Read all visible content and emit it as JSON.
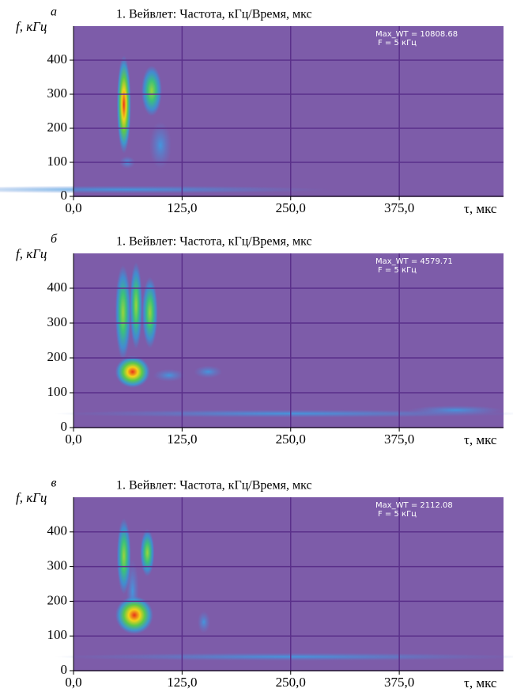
{
  "chart_data": [
    {
      "type": "heatmap",
      "panel_label": "а",
      "title": "1. Вейвлет: Частота, кГц/Время, мкс",
      "ylabel": "f, кГц",
      "xlabel": "τ, мкс",
      "annotations": [
        "Max_WT = 10808.68",
        "F = 5 кГц"
      ],
      "xlim": [
        0,
        495
      ],
      "ylim": [
        0,
        500
      ],
      "xticks": [
        {
          "value": 0,
          "label": "0,0"
        },
        {
          "value": 125,
          "label": "125,0"
        },
        {
          "value": 250,
          "label": "250,0"
        },
        {
          "value": 375,
          "label": "375,0"
        }
      ],
      "yticks": [
        0,
        100,
        200,
        300,
        400
      ],
      "grid": true
    },
    {
      "type": "heatmap",
      "panel_label": "б",
      "title": "1. Вейвлет: Частота, кГц/Время, мкс",
      "ylabel": "f, кГц",
      "xlabel": "τ, мкс",
      "annotations": [
        "Max_WT = 4579.71",
        "F = 5 кГц"
      ],
      "xlim": [
        0,
        495
      ],
      "ylim": [
        0,
        500
      ],
      "xticks": [
        {
          "value": 0,
          "label": "0,0"
        },
        {
          "value": 125,
          "label": "125,0"
        },
        {
          "value": 250,
          "label": "250,0"
        },
        {
          "value": 375,
          "label": "375,0"
        }
      ],
      "yticks": [
        0,
        100,
        200,
        300,
        400
      ],
      "grid": true
    },
    {
      "type": "heatmap",
      "panel_label": "в",
      "title": "1. Вейвлет: Частота, кГц/Время, мкс",
      "ylabel": "f, кГц",
      "xlabel": "τ, мкс",
      "annotations": [
        "Max_WT = 2112.08",
        "F = 5 кГц"
      ],
      "xlim": [
        0,
        495
      ],
      "ylim": [
        0,
        500
      ],
      "xticks": [
        {
          "value": 0,
          "label": "0,0"
        },
        {
          "value": 125,
          "label": "125,0"
        },
        {
          "value": 250,
          "label": "250,0"
        },
        {
          "value": 375,
          "label": "375,0"
        }
      ],
      "yticks": [
        0,
        100,
        200,
        300,
        400
      ],
      "grid": true
    }
  ]
}
